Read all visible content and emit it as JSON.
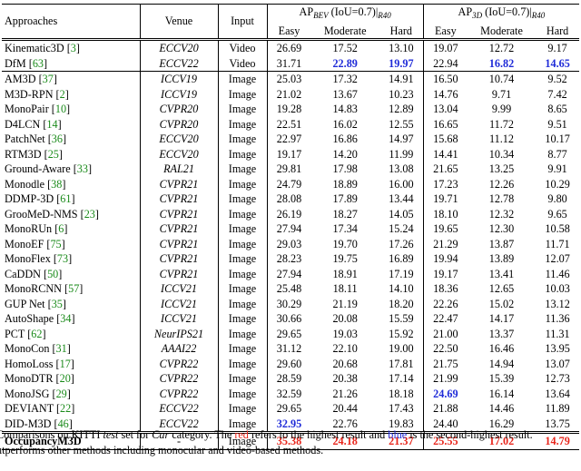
{
  "header": {
    "approaches": "Approaches",
    "venue": "Venue",
    "input": "Input",
    "bev_group_prefix": "AP",
    "bev_group_sub": "BEV",
    "bev_group_mid": " (IoU=0.7)|",
    "bev_group_sub2": "R40",
    "d3_group_prefix": "AP",
    "d3_group_sub": "3D",
    "d3_group_mid": " (IoU=0.7)|",
    "d3_group_sub2": "R40",
    "easy": "Easy",
    "moderate": "Moderate",
    "hard": "Hard"
  },
  "rows": [
    {
      "group": "video",
      "name": "Kinematic3D",
      "ref": "3",
      "venue": "ECCV20",
      "input": "Video",
      "vals": [
        "26.69",
        "17.52",
        "13.10",
        "19.07",
        "12.72",
        "9.17"
      ],
      "hl": [
        "",
        "",
        "",
        "",
        "",
        ""
      ]
    },
    {
      "group": "video",
      "name": "DfM",
      "ref": "63",
      "venue": "ECCV22",
      "input": "Video",
      "vals": [
        "31.71",
        "22.89",
        "19.97",
        "22.94",
        "16.82",
        "14.65"
      ],
      "hl": [
        "",
        "blue",
        "blue",
        "",
        "blue",
        "blue"
      ]
    },
    {
      "group": "image",
      "name": "AM3D",
      "ref": "37",
      "venue": "ICCV19",
      "input": "Image",
      "vals": [
        "25.03",
        "17.32",
        "14.91",
        "16.50",
        "10.74",
        "9.52"
      ],
      "hl": [
        "",
        "",
        "",
        "",
        "",
        ""
      ]
    },
    {
      "group": "image",
      "name": "M3D-RPN",
      "ref": "2",
      "venue": "ICCV19",
      "input": "Image",
      "vals": [
        "21.02",
        "13.67",
        "10.23",
        "14.76",
        "9.71",
        "7.42"
      ],
      "hl": [
        "",
        "",
        "",
        "",
        "",
        ""
      ]
    },
    {
      "group": "image",
      "name": "MonoPair",
      "ref": "10",
      "venue": "CVPR20",
      "input": "Image",
      "vals": [
        "19.28",
        "14.83",
        "12.89",
        "13.04",
        "9.99",
        "8.65"
      ],
      "hl": [
        "",
        "",
        "",
        "",
        "",
        ""
      ]
    },
    {
      "group": "image",
      "name": "D4LCN",
      "ref": "14",
      "venue": "CVPR20",
      "input": "Image",
      "vals": [
        "22.51",
        "16.02",
        "12.55",
        "16.65",
        "11.72",
        "9.51"
      ],
      "hl": [
        "",
        "",
        "",
        "",
        "",
        ""
      ]
    },
    {
      "group": "image",
      "name": "PatchNet",
      "ref": "36",
      "venue": "ECCV20",
      "input": "Image",
      "vals": [
        "22.97",
        "16.86",
        "14.97",
        "15.68",
        "11.12",
        "10.17"
      ],
      "hl": [
        "",
        "",
        "",
        "",
        "",
        ""
      ]
    },
    {
      "group": "image",
      "name": "RTM3D",
      "ref": "25",
      "venue": "ECCV20",
      "input": "Image",
      "vals": [
        "19.17",
        "14.20",
        "11.99",
        "14.41",
        "10.34",
        "8.77"
      ],
      "hl": [
        "",
        "",
        "",
        "",
        "",
        ""
      ]
    },
    {
      "group": "image",
      "name": "Ground-Aware",
      "ref": "33",
      "venue": "RAL21",
      "input": "Image",
      "vals": [
        "29.81",
        "17.98",
        "13.08",
        "21.65",
        "13.25",
        "9.91"
      ],
      "hl": [
        "",
        "",
        "",
        "",
        "",
        ""
      ]
    },
    {
      "group": "image",
      "name": "Monodle",
      "ref": "38",
      "venue": "CVPR21",
      "input": "Image",
      "vals": [
        "24.79",
        "18.89",
        "16.00",
        "17.23",
        "12.26",
        "10.29"
      ],
      "hl": [
        "",
        "",
        "",
        "",
        "",
        ""
      ]
    },
    {
      "group": "image",
      "name": "DDMP-3D",
      "ref": "61",
      "venue": "CVPR21",
      "input": "Image",
      "vals": [
        "28.08",
        "17.89",
        "13.44",
        "19.71",
        "12.78",
        "9.80"
      ],
      "hl": [
        "",
        "",
        "",
        "",
        "",
        ""
      ]
    },
    {
      "group": "image",
      "name": "GrooMeD-NMS",
      "ref": "23",
      "venue": "CVPR21",
      "input": "Image",
      "vals": [
        "26.19",
        "18.27",
        "14.05",
        "18.10",
        "12.32",
        "9.65"
      ],
      "hl": [
        "",
        "",
        "",
        "",
        "",
        ""
      ]
    },
    {
      "group": "image",
      "name": "MonoRUn",
      "ref": "6",
      "venue": "CVPR21",
      "input": "Image",
      "vals": [
        "27.94",
        "17.34",
        "15.24",
        "19.65",
        "12.30",
        "10.58"
      ],
      "hl": [
        "",
        "",
        "",
        "",
        "",
        ""
      ]
    },
    {
      "group": "image",
      "name": "MonoEF",
      "ref": "75",
      "venue": "CVPR21",
      "input": "Image",
      "vals": [
        "29.03",
        "19.70",
        "17.26",
        "21.29",
        "13.87",
        "11.71"
      ],
      "hl": [
        "",
        "",
        "",
        "",
        "",
        ""
      ]
    },
    {
      "group": "image",
      "name": "MonoFlex",
      "ref": "73",
      "venue": "CVPR21",
      "input": "Image",
      "vals": [
        "28.23",
        "19.75",
        "16.89",
        "19.94",
        "13.89",
        "12.07"
      ],
      "hl": [
        "",
        "",
        "",
        "",
        "",
        ""
      ]
    },
    {
      "group": "image",
      "name": "CaDDN",
      "ref": "50",
      "venue": "CVPR21",
      "input": "Image",
      "vals": [
        "27.94",
        "18.91",
        "17.19",
        "19.17",
        "13.41",
        "11.46"
      ],
      "hl": [
        "",
        "",
        "",
        "",
        "",
        ""
      ]
    },
    {
      "group": "image",
      "name": "MonoRCNN",
      "ref": "57",
      "venue": "ICCV21",
      "input": "Image",
      "vals": [
        "25.48",
        "18.11",
        "14.10",
        "18.36",
        "12.65",
        "10.03"
      ],
      "hl": [
        "",
        "",
        "",
        "",
        "",
        ""
      ]
    },
    {
      "group": "image",
      "name": "GUP Net",
      "ref": "35",
      "venue": "ICCV21",
      "input": "Image",
      "vals": [
        "30.29",
        "21.19",
        "18.20",
        "22.26",
        "15.02",
        "13.12"
      ],
      "hl": [
        "",
        "",
        "",
        "",
        "",
        ""
      ]
    },
    {
      "group": "image",
      "name": "AutoShape",
      "ref": "34",
      "venue": "ICCV21",
      "input": "Image",
      "vals": [
        "30.66",
        "20.08",
        "15.59",
        "22.47",
        "14.17",
        "11.36"
      ],
      "hl": [
        "",
        "",
        "",
        "",
        "",
        ""
      ]
    },
    {
      "group": "image",
      "name": "PCT",
      "ref": "62",
      "venue": "NeurIPS21",
      "input": "Image",
      "vals": [
        "29.65",
        "19.03",
        "15.92",
        "21.00",
        "13.37",
        "11.31"
      ],
      "hl": [
        "",
        "",
        "",
        "",
        "",
        ""
      ]
    },
    {
      "group": "image",
      "name": "MonoCon",
      "ref": "31",
      "venue": "AAAI22",
      "input": "Image",
      "vals": [
        "31.12",
        "22.10",
        "19.00",
        "22.50",
        "16.46",
        "13.95"
      ],
      "hl": [
        "",
        "",
        "",
        "",
        "",
        ""
      ]
    },
    {
      "group": "image",
      "name": "HomoLoss",
      "ref": "17",
      "venue": "CVPR22",
      "input": "Image",
      "vals": [
        "29.60",
        "20.68",
        "17.81",
        "21.75",
        "14.94",
        "13.07"
      ],
      "hl": [
        "",
        "",
        "",
        "",
        "",
        ""
      ]
    },
    {
      "group": "image",
      "name": "MonoDTR",
      "ref": "20",
      "venue": "CVPR22",
      "input": "Image",
      "vals": [
        "28.59",
        "20.38",
        "17.14",
        "21.99",
        "15.39",
        "12.73"
      ],
      "hl": [
        "",
        "",
        "",
        "",
        "",
        ""
      ]
    },
    {
      "group": "image",
      "name": "MonoJSG",
      "ref": "29",
      "venue": "CVPR22",
      "input": "Image",
      "vals": [
        "32.59",
        "21.26",
        "18.18",
        "24.69",
        "16.14",
        "13.64"
      ],
      "hl": [
        "",
        "",
        "",
        "blue",
        "",
        ""
      ]
    },
    {
      "group": "image",
      "name": "DEVIANT",
      "ref": "22",
      "venue": "ECCV22",
      "input": "Image",
      "vals": [
        "29.65",
        "20.44",
        "17.43",
        "21.88",
        "14.46",
        "11.89"
      ],
      "hl": [
        "",
        "",
        "",
        "",
        "",
        ""
      ]
    },
    {
      "group": "image",
      "name": "DID-M3D",
      "ref": "46",
      "venue": "ECCV22",
      "input": "Image",
      "vals": [
        "32.95",
        "22.76",
        "19.83",
        "24.40",
        "16.29",
        "13.75"
      ],
      "hl": [
        "blue",
        "",
        "",
        "",
        "",
        ""
      ]
    },
    {
      "group": "ours",
      "name": "OccupancyM3D",
      "ref": "",
      "venue": "-",
      "input": "Image",
      "vals": [
        "35.38",
        "24.18",
        "21.37",
        "25.55",
        "17.02",
        "14.79"
      ],
      "hl": [
        "red",
        "red",
        "red",
        "red",
        "red",
        "red"
      ]
    }
  ],
  "caption": {
    "part1": "Comparisons on KITTI ",
    "test_word": "test",
    "part2": " set for ",
    "car_word": "Car",
    "part3": " category. The ",
    "red_word": "red",
    "part4": " refers to the highest result and ",
    "blue_word": "blue",
    "part5": " is the second-highest result.",
    "line2": "utperforms other methods including monocular and video-based methods."
  },
  "colors": {
    "red": "#e8261c",
    "blue": "#1f2bd8",
    "ref_green": "#1a8a1a"
  }
}
